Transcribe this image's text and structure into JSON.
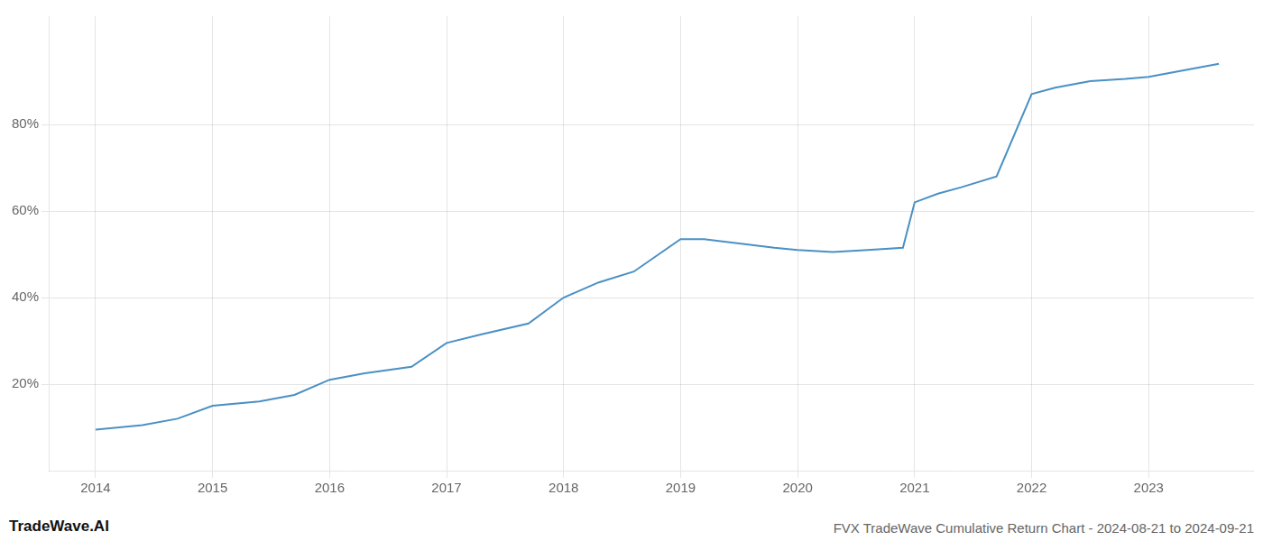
{
  "chart_data": {
    "type": "line",
    "title": "FVX TradeWave Cumulative Return Chart - 2024-08-21 to 2024-09-21",
    "annotations": [
      "TradeWave.AI"
    ],
    "x": [
      2014.0,
      2014.4,
      2014.7,
      2015.0,
      2015.4,
      2015.7,
      2016.0,
      2016.3,
      2016.7,
      2017.0,
      2017.3,
      2017.7,
      2018.0,
      2018.3,
      2018.6,
      2019.0,
      2019.2,
      2019.5,
      2019.8,
      2020.0,
      2020.3,
      2020.6,
      2020.9,
      2021.0,
      2021.2,
      2021.4,
      2021.7,
      2022.0,
      2022.2,
      2022.5,
      2022.8,
      2023.0,
      2023.3,
      2023.6
    ],
    "values": [
      0.095,
      0.105,
      0.12,
      0.15,
      0.16,
      0.175,
      0.21,
      0.225,
      0.24,
      0.295,
      0.315,
      0.34,
      0.4,
      0.435,
      0.46,
      0.535,
      0.535,
      0.525,
      0.515,
      0.51,
      0.505,
      0.51,
      0.515,
      0.62,
      0.64,
      0.655,
      0.68,
      0.87,
      0.885,
      0.9,
      0.905,
      0.91,
      0.925,
      0.94
    ],
    "color": "#4a90c4",
    "xlim": [
      2013.6,
      2023.9
    ],
    "ylim": [
      0.0,
      1.05
    ],
    "xticks": [
      2014,
      2015,
      2016,
      2017,
      2018,
      2019,
      2020,
      2021,
      2022,
      2023
    ],
    "yticks": [
      {
        "value": 0.2,
        "label": "20%"
      },
      {
        "value": 0.4,
        "label": "40%"
      },
      {
        "value": 0.6,
        "label": "60%"
      },
      {
        "value": 0.8,
        "label": "80%"
      }
    ],
    "grid": true
  }
}
